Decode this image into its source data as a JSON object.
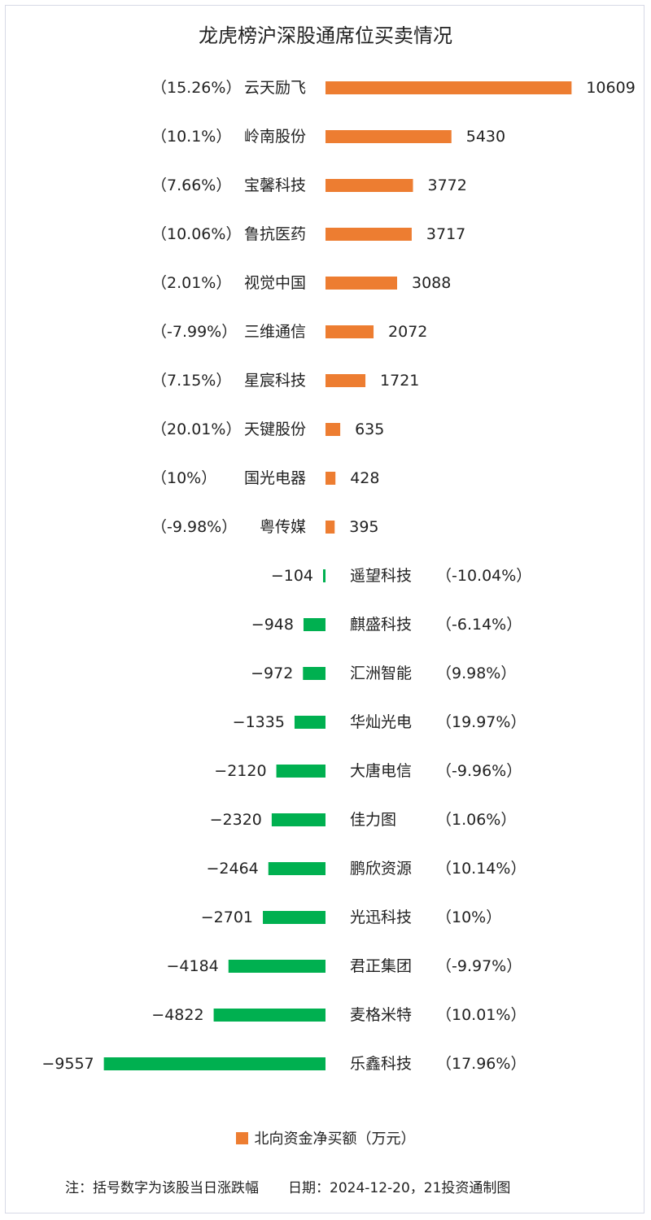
{
  "title": "龙虎榜沪深股通席位买卖情况",
  "legend": {
    "label": "北向资金净买额（万元）",
    "color": "#ed7d31"
  },
  "footer": {
    "note": "注：括号数字为该股当日涨跌幅",
    "date": "日期：2024-12-20，21投资通制图"
  },
  "colors": {
    "positive": "#ed7d31",
    "negative": "#00b050"
  },
  "chart_data": {
    "type": "bar",
    "orientation": "horizontal",
    "title": "龙虎榜沪深股通席位买卖情况",
    "unit": "万元",
    "categories": [
      "云天励飞",
      "岭南股份",
      "宝馨科技",
      "鲁抗医药",
      "视觉中国",
      "三维通信",
      "星宸科技",
      "天键股份",
      "国光电器",
      "粤传媒",
      "遥望科技",
      "麒盛科技",
      "汇洲智能",
      "华灿光电",
      "大唐电信",
      "佳力图",
      "鹏欣资源",
      "光迅科技",
      "君正集团",
      "麦格米特",
      "乐鑫科技"
    ],
    "values": [
      10609,
      5430,
      3772,
      3717,
      3088,
      2072,
      1721,
      635,
      428,
      395,
      -104,
      -948,
      -972,
      -1335,
      -2120,
      -2320,
      -2464,
      -2701,
      -4184,
      -4822,
      -9557
    ],
    "pct_labels": [
      "（15.26%）",
      "（10.1%）",
      "（7.66%）",
      "（10.06%）",
      "（2.01%）",
      "（-7.99%）",
      "（7.15%）",
      "（20.01%）",
      "（10%）",
      "（-9.98%）",
      "（-10.04%）",
      "（-6.14%）",
      "（9.98%）",
      "（19.97%）",
      "（-9.96%）",
      "（1.06%）",
      "（10.14%）",
      "（10%）",
      "（-9.97%）",
      "（10.01%）",
      "（17.96%）"
    ],
    "series": [
      {
        "name": "北向资金净买额（万元）"
      }
    ]
  }
}
